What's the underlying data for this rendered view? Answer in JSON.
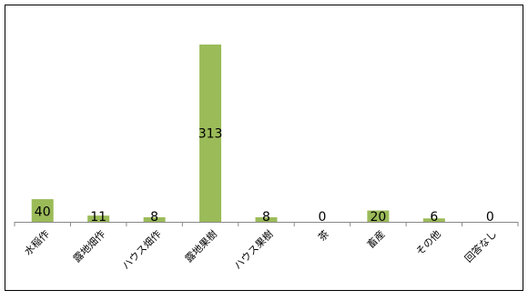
{
  "chart_data": {
    "type": "bar",
    "categories": [
      "水稲作",
      "露地畑作",
      "ハウス畑作",
      "露地果樹",
      "ハウス果樹",
      "茶",
      "畜産",
      "その他",
      "回答なし"
    ],
    "values": [
      40,
      11,
      8,
      313,
      8,
      0,
      20,
      6,
      0
    ],
    "title": "",
    "xlabel": "",
    "ylabel": "",
    "ylim": [
      0,
      313
    ],
    "grid": false,
    "legend": "none",
    "bar_color": "#9BBB59"
  }
}
